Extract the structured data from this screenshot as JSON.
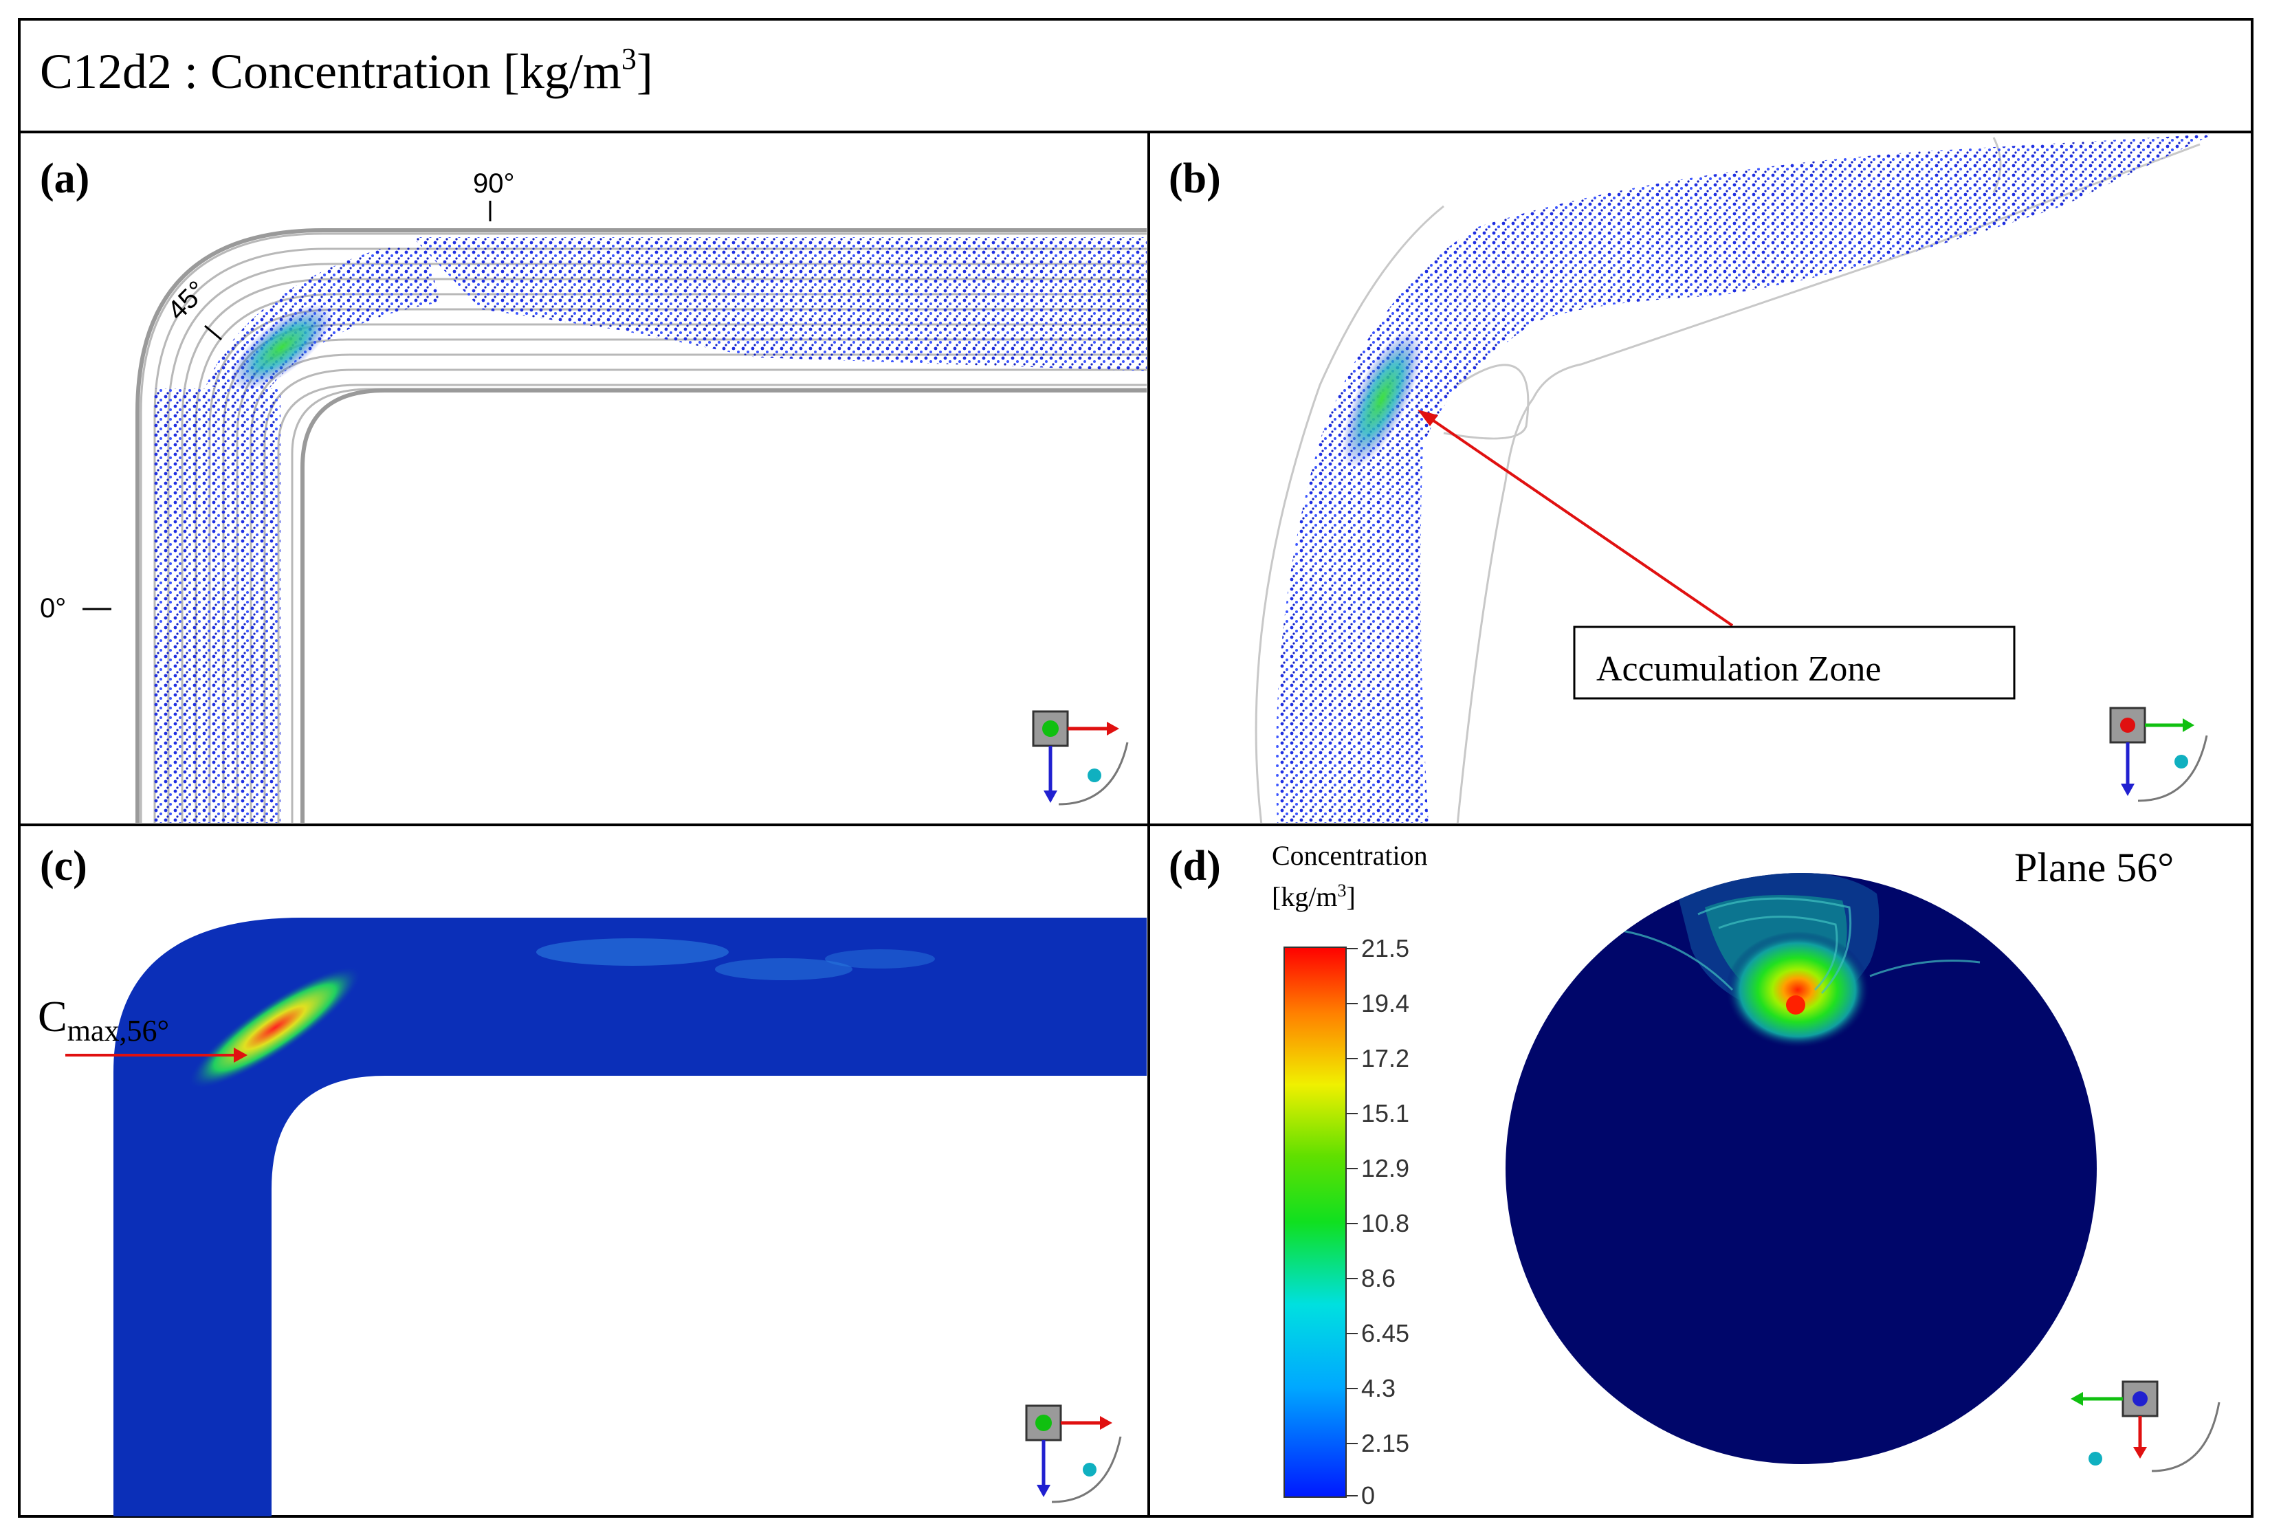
{
  "title": {
    "main": "C12d2 : Concentration  [kg/m",
    "sup": "3",
    "close": "]"
  },
  "panels": {
    "a": {
      "label": "(a)",
      "angles": [
        "0°",
        "45°",
        "90°"
      ]
    },
    "b": {
      "label": "(b)",
      "annotation": "Accumulation Zone"
    },
    "c": {
      "label": "(c)",
      "cmax_main": "C",
      "cmax_sub": "max,56°"
    },
    "d": {
      "label": "(d)",
      "legend_title_1": "Concentration",
      "legend_title_2": "[kg/m",
      "legend_title_sup": "3",
      "legend_title_close": "]",
      "plane_label": "Plane 56°",
      "legend_ticks": [
        "21.5",
        "19.4",
        "17.2",
        "15.1",
        "12.9",
        "10.8",
        "8.6",
        "6.45",
        "4.3",
        "2.15",
        "0"
      ]
    }
  },
  "colors": {
    "particle_blue": "#1f2fe0",
    "field_blue": "#0b2fb8",
    "deep_navy": "#00066a",
    "arrow_red": "#e01010"
  }
}
